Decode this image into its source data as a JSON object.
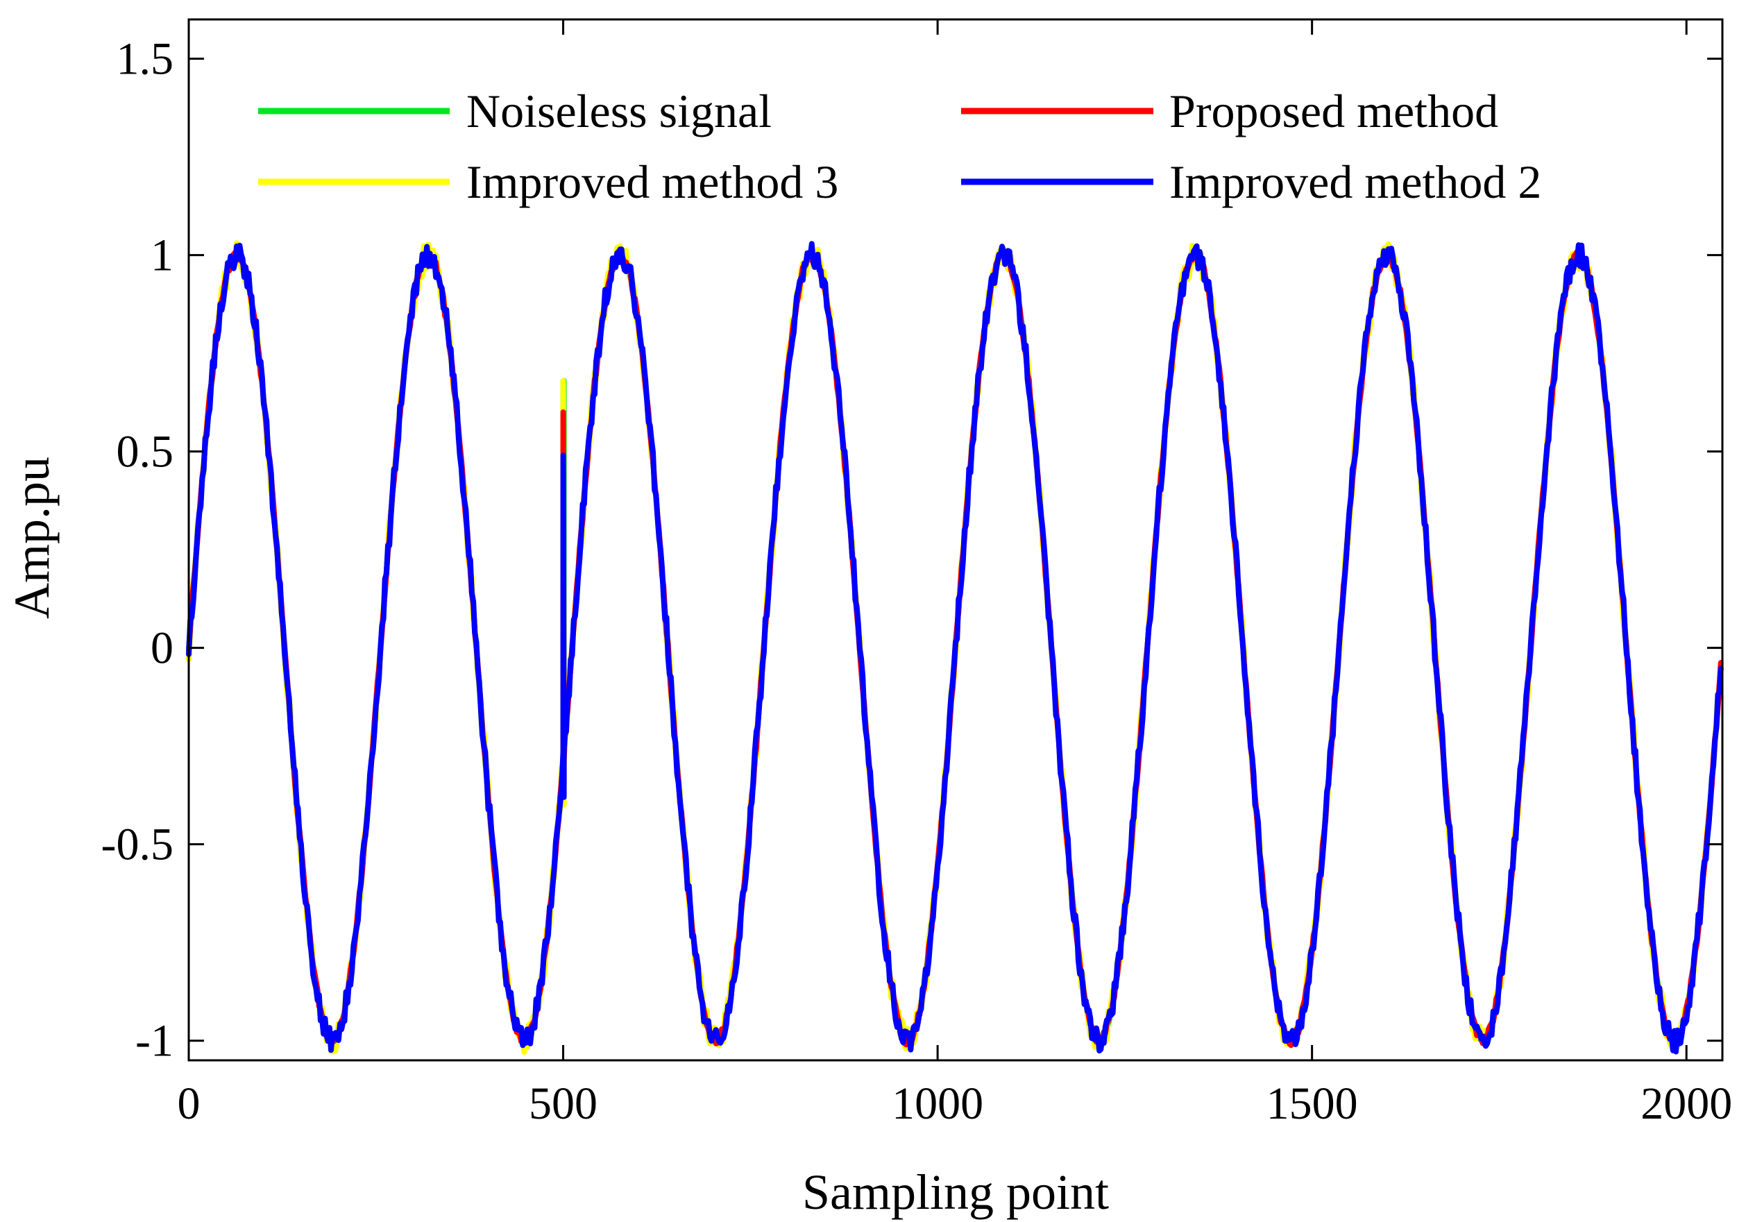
{
  "chart_data": {
    "type": "line",
    "title": "",
    "xlabel": "Sampling point",
    "ylabel": "Amp.pu",
    "xlim": [
      0,
      2048
    ],
    "ylim": [
      -1.05,
      1.6
    ],
    "xticks": [
      0,
      500,
      1000,
      1500,
      2000
    ],
    "yticks": [
      -1,
      -0.5,
      0,
      0.5,
      1,
      1.5
    ],
    "xtick_labels": [
      "0",
      "500",
      "1000",
      "1500",
      "2000"
    ],
    "ytick_labels": [
      "-1",
      "-0.5",
      "0",
      "0.5",
      "1",
      "1.5"
    ],
    "grid": false,
    "legend_position": "top",
    "signal": {
      "description_model": "sin(2*pi*x/256)",
      "period": 256,
      "amplitude": 1.0,
      "n_points": 2048,
      "disturbance_at": 500
    },
    "series": [
      {
        "name": "Noiseless signal",
        "color": "#00e61e",
        "noise": 0.0,
        "spike": [
          0.68,
          0.68
        ]
      },
      {
        "name": "Improved method 3",
        "color": "#ffff00",
        "noise": 0.035,
        "spike": [
          0.68,
          -0.4
        ]
      },
      {
        "name": "Proposed method",
        "color": "#ff0000",
        "noise": 0.012,
        "spike": [
          0.6,
          -0.35
        ]
      },
      {
        "name": "Improved method 2",
        "color": "#0000ff",
        "noise": 0.03,
        "spike": [
          0.49,
          -0.38
        ]
      }
    ]
  }
}
